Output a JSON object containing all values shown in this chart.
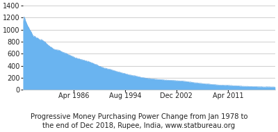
{
  "title_line1": "Progressive Money Purchasing Power Change from Jan 1978 to",
  "title_line2": "the end of Dec 2018, Rupee, India, www.statbureau.org",
  "title_fontsize": 7.2,
  "fill_color": "#6ab4f0",
  "line_color": "#5aa0e0",
  "background_color": "#ffffff",
  "grid_color": "#bbbbbb",
  "ylim": [
    0,
    1400
  ],
  "yticks": [
    0,
    200,
    400,
    600,
    800,
    1000,
    1200,
    1400
  ],
  "xtick_labels": [
    "Apr 1986",
    "Aug 1994",
    "Dec 2002",
    "Apr 2011"
  ],
  "total_months": 492,
  "title_color": "#222222",
  "tick_color": "#222222",
  "tick_fontsize": 7.0
}
